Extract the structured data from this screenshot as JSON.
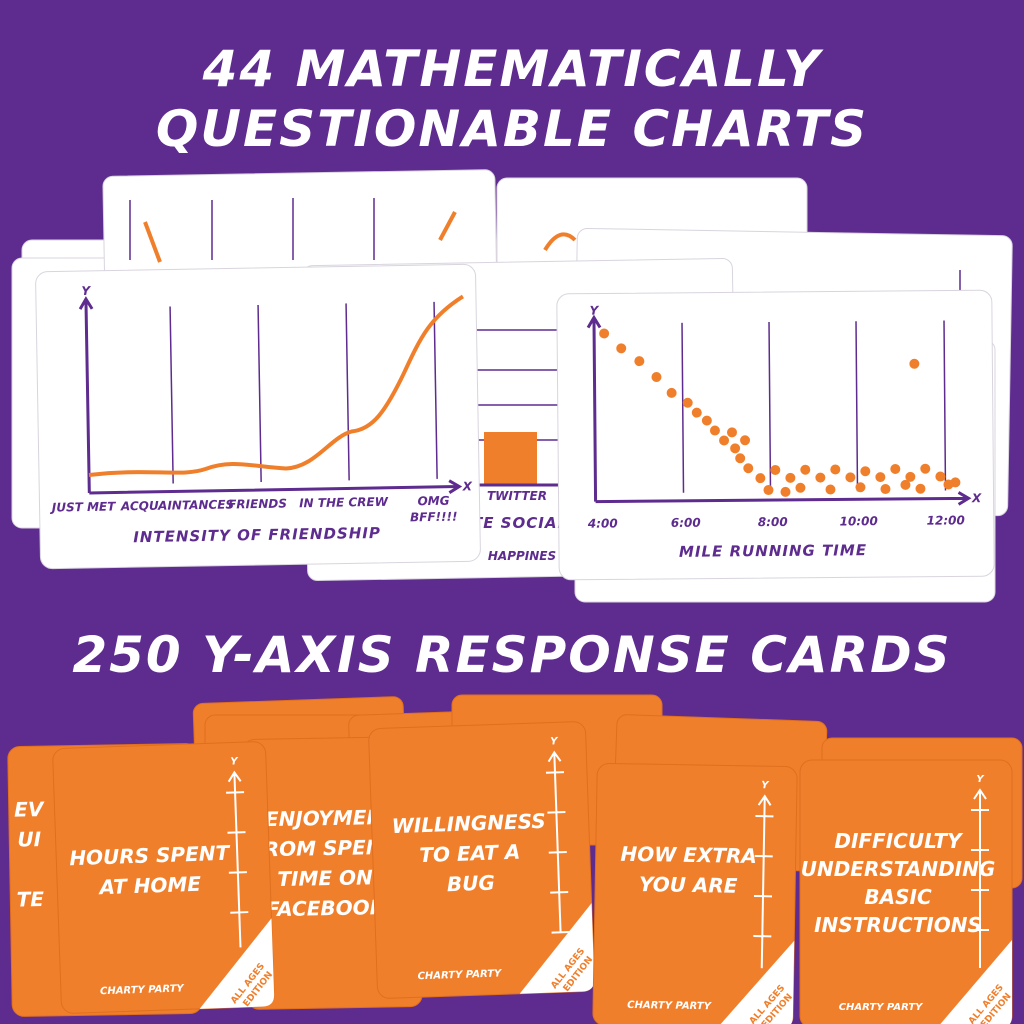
{
  "header": {
    "line1": "44 MATHEMATICALLY",
    "line2": "QUESTIONABLE CHARTS"
  },
  "chart_cards": [
    {
      "y_label": "Y",
      "x_label": "X",
      "categories": [
        "JUST MET",
        "ACQUAINTANCES",
        "FRIENDS",
        "IN THE CREW",
        "OMG",
        "BFF!!!!"
      ],
      "title": "INTENSITY OF FRIENDSHIP"
    },
    {
      "category": "TWITTER",
      "title_fragment": "TE SOCIAL",
      "subtitle_fragment": "HAPPINES"
    },
    {
      "y_label": "Y",
      "x_label": "X",
      "categories": [
        "4:00",
        "6:00",
        "8:00",
        "10:00",
        "12:00"
      ],
      "title": "MILE RUNNING TIME"
    }
  ],
  "subheader": "250 Y-AXIS RESPONSE CARDS",
  "response_cards": [
    {
      "lines": [
        "EV",
        "UI",
        "",
        "TE"
      ]
    },
    {
      "lines": [
        "ENJOYMEN",
        "FROM SPEND",
        "TIME ON",
        "FACEBOOK"
      ]
    },
    {
      "lines": [
        "HOURS SPENT",
        "AT HOME"
      ]
    },
    {
      "lines": [
        "WILLINGNESS",
        "TO EAT A",
        "BUG"
      ]
    },
    {
      "lines": [
        "HOW EXTRA",
        "YOU ARE"
      ]
    },
    {
      "lines": [
        "DIFFICULTY",
        "UNDERSTANDING",
        "BASIC",
        "INSTRUCTIONS"
      ]
    }
  ],
  "axis_label": "Y",
  "card_footer": "CHARTY PARTY",
  "badge": {
    "line1": "ALL AGES",
    "line2": "EDITION"
  }
}
